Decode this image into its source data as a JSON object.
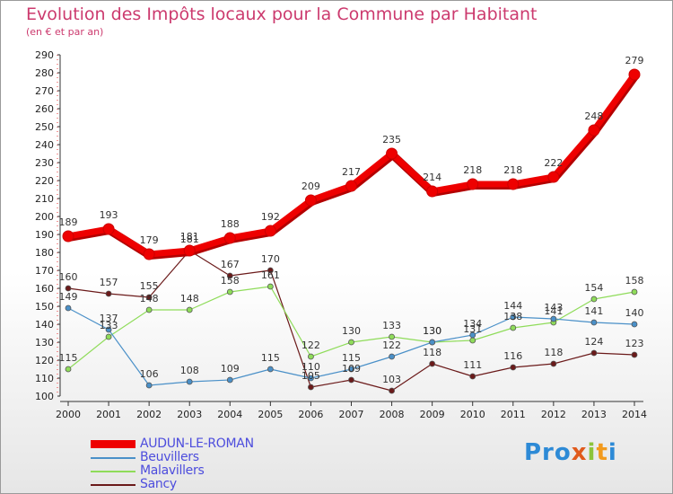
{
  "header": {
    "title": "Evolution des Impôts locaux pour la Commune par Habitant",
    "subtitle": "(en € et par an)"
  },
  "logo": {
    "text": "Proxiti"
  },
  "chart_data": {
    "type": "line",
    "x": [
      "2000",
      "2001",
      "2002",
      "2003",
      "2004",
      "2005",
      "2006",
      "2007",
      "2008",
      "2009",
      "2010",
      "2011",
      "2012",
      "2013",
      "2014"
    ],
    "ylim": [
      100,
      290
    ],
    "yticks": [
      100,
      110,
      120,
      130,
      140,
      150,
      160,
      170,
      180,
      190,
      200,
      210,
      220,
      230,
      240,
      250,
      260,
      270,
      280,
      290
    ],
    "grid": false,
    "legend_position": "bottom-left",
    "series": [
      {
        "name": "AUDUN-LE-ROMAN",
        "color": "#ee0000",
        "values": [
          189,
          193,
          179,
          181,
          188,
          192,
          209,
          217,
          235,
          214,
          218,
          218,
          222,
          248,
          279
        ],
        "labels": [
          "189",
          "193",
          "179",
          "181",
          "188",
          "192",
          "209",
          "217",
          "235",
          "214",
          "218",
          "218",
          "222",
          "248",
          "279"
        ]
      },
      {
        "name": "Beuvillers",
        "color": "#4a90c8",
        "values": [
          149,
          137,
          106,
          108,
          109,
          115,
          110,
          115,
          122,
          130,
          134,
          144,
          143,
          141,
          140
        ],
        "labels": [
          "149",
          "137",
          "106",
          "108",
          "109",
          "115",
          "110",
          "115",
          "122",
          "130",
          "134",
          "144",
          "143",
          "141",
          "140"
        ]
      },
      {
        "name": "Malavillers",
        "color": "#8fdc5a",
        "values": [
          115,
          133,
          148,
          148,
          158,
          161,
          122,
          130,
          133,
          130,
          131,
          138,
          141,
          154,
          158
        ],
        "labels": [
          "115",
          "133",
          "148",
          "148",
          "158",
          "161",
          "122",
          "130",
          "133",
          "130",
          "131",
          "138",
          "141",
          "154",
          "158"
        ]
      },
      {
        "name": "Sancy",
        "color": "#6b1a1a",
        "values": [
          160,
          157,
          155,
          181,
          167,
          170,
          105,
          109,
          103,
          118,
          111,
          116,
          118,
          124,
          123
        ],
        "labels": [
          "160",
          "157",
          "155",
          "181",
          "167",
          "170",
          "105",
          "109",
          "103",
          "118",
          "111",
          "116",
          "118",
          "124",
          "123"
        ]
      }
    ]
  }
}
